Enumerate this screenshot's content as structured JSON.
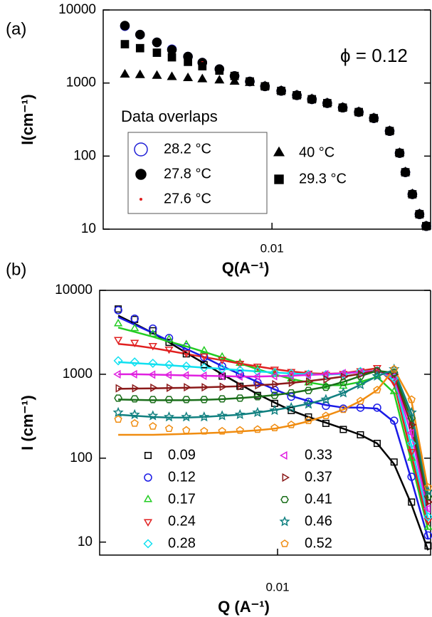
{
  "chart_data": [
    {
      "type": "scatter",
      "panel_label": "(a)",
      "xlabel": "Q(A⁻¹)",
      "ylabel": "I(cm⁻¹)",
      "annotations": [
        "ϕ = 0.12",
        "Data overlaps"
      ],
      "xlog": true,
      "ylog": true,
      "xlim": [
        0.0029,
        0.032
      ],
      "ylim": [
        10,
        10000
      ],
      "xticks": [
        0.01
      ],
      "yticks": [
        10,
        100,
        1000,
        10000
      ],
      "x": [
        0.0034,
        0.0038,
        0.0043,
        0.0048,
        0.0054,
        0.006,
        0.0068,
        0.0076,
        0.0085,
        0.0095,
        0.0107,
        0.012,
        0.0134,
        0.015,
        0.0168,
        0.0189,
        0.0211,
        0.0237,
        0.0255,
        0.0266,
        0.028,
        0.0295,
        0.031
      ],
      "series": [
        {
          "name": "28.2 °C",
          "color": "#1f1fd6",
          "marker": "circle",
          "filled": false,
          "values": [
            6000,
            4600,
            3600,
            2900,
            2300,
            1900,
            1550,
            1250,
            1050,
            900,
            780,
            680,
            600,
            530,
            460,
            400,
            330,
            220,
            110,
            60,
            30,
            16,
            11
          ]
        },
        {
          "name": "27.8 °C",
          "color": "#000000",
          "marker": "circle",
          "filled": true,
          "values": [
            6100,
            4600,
            3600,
            2850,
            2300,
            1900,
            1550,
            1250,
            1050,
            900,
            780,
            680,
            600,
            530,
            460,
            400,
            330,
            220,
            110,
            60,
            30,
            16,
            11
          ]
        },
        {
          "name": "27.6 °C",
          "color": "#e02020",
          "marker": "dot",
          "filled": true,
          "values": [
            null,
            null,
            null,
            null,
            null,
            1900,
            1550,
            1250,
            1050,
            900,
            780,
            680,
            600,
            530,
            460,
            400,
            330,
            220,
            110,
            60,
            30,
            16,
            11
          ]
        },
        {
          "name": "40 °C",
          "color": "#000000",
          "marker": "triangle-up",
          "filled": true,
          "values": [
            1300,
            1280,
            1250,
            1200,
            1160,
            1120,
            1080,
            1040,
            1000,
            900,
            780,
            680,
            600,
            530,
            460,
            400,
            330,
            220,
            110,
            60,
            30,
            16,
            11
          ]
        },
        {
          "name": "29.3 °C",
          "color": "#000000",
          "marker": "square",
          "filled": true,
          "values": [
            3400,
            3000,
            2600,
            2250,
            1950,
            1700,
            1480,
            1250,
            1050,
            900,
            780,
            680,
            600,
            530,
            460,
            400,
            330,
            220,
            110,
            60,
            30,
            16,
            11
          ]
        }
      ]
    },
    {
      "type": "scatter",
      "panel_label": "(b)",
      "xlabel": "Q (A⁻¹)",
      "ylabel": "I (cm⁻¹)",
      "xlog": true,
      "ylog": true,
      "xlim": [
        0.0029,
        0.029
      ],
      "ylim": [
        7,
        10000
      ],
      "xticks": [
        0.01
      ],
      "yticks": [
        10,
        100,
        1000,
        10000
      ],
      "x": [
        0.0033,
        0.0037,
        0.0042,
        0.0047,
        0.0053,
        0.006,
        0.0068,
        0.0077,
        0.0087,
        0.0098,
        0.011,
        0.0124,
        0.014,
        0.0158,
        0.0178,
        0.02,
        0.0225,
        0.0254,
        0.0285
      ],
      "series": [
        {
          "name": "0.09",
          "color": "#000000",
          "marker": "square",
          "values": [
            6000,
            4500,
            3300,
            2400,
            1750,
            1300,
            950,
            720,
            560,
            450,
            370,
            310,
            260,
            220,
            190,
            150,
            90,
            30,
            9
          ],
          "fit": [
            5000,
            4000,
            3100,
            2400,
            1800,
            1350,
            1000,
            760,
            580,
            460,
            370,
            310,
            265,
            225,
            190,
            150,
            85,
            28,
            8
          ]
        },
        {
          "name": "0.12",
          "color": "#1a1ae6",
          "marker": "circle",
          "values": [
            5800,
            4600,
            3500,
            2700,
            2100,
            1600,
            1250,
            1000,
            800,
            650,
            540,
            470,
            420,
            390,
            400,
            400,
            280,
            60,
            12
          ],
          "fit": [
            4800,
            3900,
            3100,
            2500,
            2000,
            1600,
            1250,
            1000,
            810,
            660,
            550,
            480,
            430,
            400,
            400,
            390,
            270,
            55,
            11
          ]
        },
        {
          "name": "0.17",
          "color": "#22cc22",
          "marker": "triangle-up",
          "values": [
            4000,
            3500,
            3000,
            2600,
            2250,
            1900,
            1600,
            1350,
            1150,
            1000,
            880,
            790,
            720,
            720,
            800,
            950,
            620,
            100,
            15
          ],
          "fit": [
            3600,
            3200,
            2800,
            2450,
            2150,
            1850,
            1580,
            1350,
            1150,
            1000,
            880,
            800,
            740,
            740,
            810,
            930,
            600,
            90,
            14
          ]
        },
        {
          "name": "0.24",
          "color": "#e02020",
          "marker": "triangle-down",
          "values": [
            2600,
            2400,
            2200,
            2000,
            1800,
            1650,
            1500,
            1350,
            1250,
            1150,
            1080,
            1030,
            1000,
            1020,
            1100,
            1200,
            800,
            120,
            18
          ],
          "fit": [
            2300,
            2200,
            2050,
            1900,
            1750,
            1600,
            1470,
            1340,
            1240,
            1150,
            1080,
            1030,
            1010,
            1030,
            1100,
            1180,
            780,
            110,
            16
          ]
        },
        {
          "name": "0.28",
          "color": "#11e0f0",
          "marker": "diamond",
          "values": [
            1450,
            1400,
            1350,
            1300,
            1250,
            1200,
            1160,
            1120,
            1080,
            1050,
            1020,
            1000,
            990,
            1000,
            1080,
            1100,
            900,
            150,
            20
          ],
          "fit": [
            1400,
            1360,
            1320,
            1280,
            1240,
            1200,
            1160,
            1120,
            1080,
            1050,
            1020,
            1000,
            990,
            1010,
            1070,
            1100,
            880,
            140,
            19
          ]
        },
        {
          "name": "0.33",
          "color": "#e020e0",
          "marker": "triangle-left",
          "values": [
            1000,
            1000,
            990,
            980,
            970,
            960,
            950,
            940,
            940,
            950,
            960,
            980,
            1000,
            1030,
            1050,
            1100,
            950,
            200,
            25
          ],
          "fit": [
            1000,
            1000,
            990,
            980,
            970,
            960,
            950,
            940,
            940,
            950,
            960,
            980,
            1000,
            1030,
            1060,
            1100,
            930,
            190,
            23
          ]
        },
        {
          "name": "0.37",
          "color": "#8b1a1a",
          "marker": "triangle-right",
          "values": [
            680,
            680,
            690,
            690,
            700,
            700,
            710,
            720,
            740,
            760,
            790,
            820,
            870,
            930,
            1000,
            1100,
            1000,
            250,
            30
          ],
          "fit": [
            670,
            675,
            680,
            685,
            690,
            700,
            710,
            720,
            740,
            760,
            790,
            830,
            880,
            940,
            1010,
            1100,
            990,
            240,
            28
          ]
        },
        {
          "name": "0.41",
          "color": "#1a6e1a",
          "marker": "hexagon",
          "values": [
            520,
            510,
            500,
            500,
            500,
            500,
            510,
            520,
            540,
            560,
            600,
            640,
            700,
            800,
            950,
            1100,
            1050,
            300,
            35
          ],
          "fit": [
            500,
            495,
            490,
            490,
            490,
            495,
            505,
            520,
            540,
            565,
            600,
            650,
            710,
            810,
            950,
            1100,
            1040,
            290,
            33
          ]
        },
        {
          "name": "0.46",
          "color": "#118080",
          "marker": "star",
          "values": [
            350,
            330,
            320,
            310,
            310,
            310,
            320,
            330,
            350,
            370,
            400,
            440,
            500,
            600,
            750,
            950,
            1150,
            350,
            40
          ],
          "fit": [
            330,
            320,
            310,
            305,
            305,
            310,
            320,
            330,
            350,
            375,
            405,
            445,
            505,
            600,
            750,
            950,
            1130,
            340,
            38
          ]
        },
        {
          "name": "0.52",
          "color": "#f08c10",
          "marker": "pentagon",
          "values": [
            290,
            260,
            240,
            225,
            215,
            210,
            210,
            215,
            220,
            230,
            250,
            280,
            320,
            380,
            480,
            650,
            1150,
            500,
            45
          ],
          "fit": [
            190,
            190,
            190,
            192,
            195,
            198,
            202,
            208,
            215,
            225,
            245,
            275,
            320,
            380,
            480,
            650,
            1150,
            480,
            42
          ]
        }
      ]
    }
  ]
}
